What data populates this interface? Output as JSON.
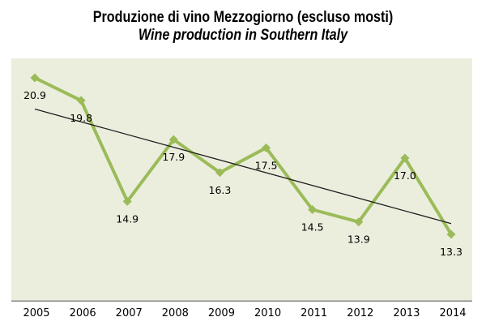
{
  "chart_data": {
    "type": "line",
    "title": "Produzione di vino Mezzogiorno (escluso mosti)",
    "subtitle": "Wine production in Southern Italy",
    "categories": [
      "2005",
      "2006",
      "2007",
      "2008",
      "2009",
      "2010",
      "2011",
      "2012",
      "2013",
      "2014"
    ],
    "series": [
      {
        "name": "wine-production",
        "values": [
          20.9,
          19.8,
          14.9,
          17.9,
          16.3,
          17.5,
          14.5,
          13.9,
          17.0,
          13.3
        ],
        "data_labels": [
          "20.9",
          "19.8",
          "14.9",
          "17.9",
          "16.3",
          "17.5",
          "14.5",
          "13.9",
          "17.0",
          "13.3"
        ]
      }
    ],
    "trendline": {
      "type": "linear",
      "color": "#1f1f1f"
    },
    "marker": "diamond",
    "colors": {
      "series_line": "#9BBB59",
      "marker_fill": "#9BBB59",
      "plot_background": "#EBEEDD",
      "axis_line": "#8A8A8A",
      "label_text": "#000000",
      "title_text": "#000000"
    },
    "legend": "none",
    "grid": "off",
    "y_axis_visible": false,
    "x_axis_visible": true,
    "ylim_implied": [
      12.5,
      22
    ]
  }
}
